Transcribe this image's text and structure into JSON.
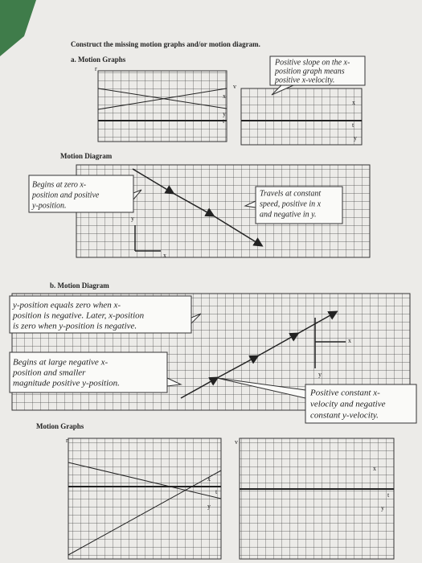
{
  "header": {
    "instruction": "Construct the missing motion graphs and/or motion diagram."
  },
  "part_a": {
    "heading": "a. Motion Graphs",
    "graph_1": {
      "axis_labels": [
        "r",
        "x",
        "y",
        "t"
      ]
    },
    "graph_2": {
      "axis_labels": [
        "v",
        "x",
        "t",
        "y"
      ]
    },
    "note_slope": {
      "lines": [
        "Positive slope on the x-",
        "position graph means",
        "positive x-velocity."
      ]
    },
    "diagram_heading": "Motion Diagram",
    "diagram": {
      "axis_labels": [
        "y",
        "x"
      ]
    },
    "note_start": {
      "lines": [
        "Begins at zero x-",
        "position and positive",
        "y-position."
      ]
    },
    "note_travel": {
      "lines": [
        "Travels at constant",
        "speed, positive in x",
        "and negative in y."
      ]
    }
  },
  "part_b": {
    "heading": "b. Motion Diagram",
    "diagram": {
      "axis_labels": [
        "x",
        "y"
      ]
    },
    "note_zero": {
      "lines": [
        "y-position equals zero when x-",
        "position is negative. Later, x-position",
        "is zero when y-position is negative."
      ]
    },
    "note_start": {
      "lines": [
        "Begins at large negative x-",
        "position and smaller",
        "magnitude positive y-position."
      ]
    },
    "note_velocity": {
      "lines": [
        "Positive constant x-",
        "velocity and negative",
        "constant y-velocity."
      ]
    },
    "graphs_heading": "Motion Graphs",
    "graph_1": {
      "axis_labels": [
        "r",
        "x",
        "t",
        "y"
      ]
    },
    "graph_2": {
      "axis_labels": [
        "v",
        "x",
        "t",
        "y"
      ]
    }
  }
}
